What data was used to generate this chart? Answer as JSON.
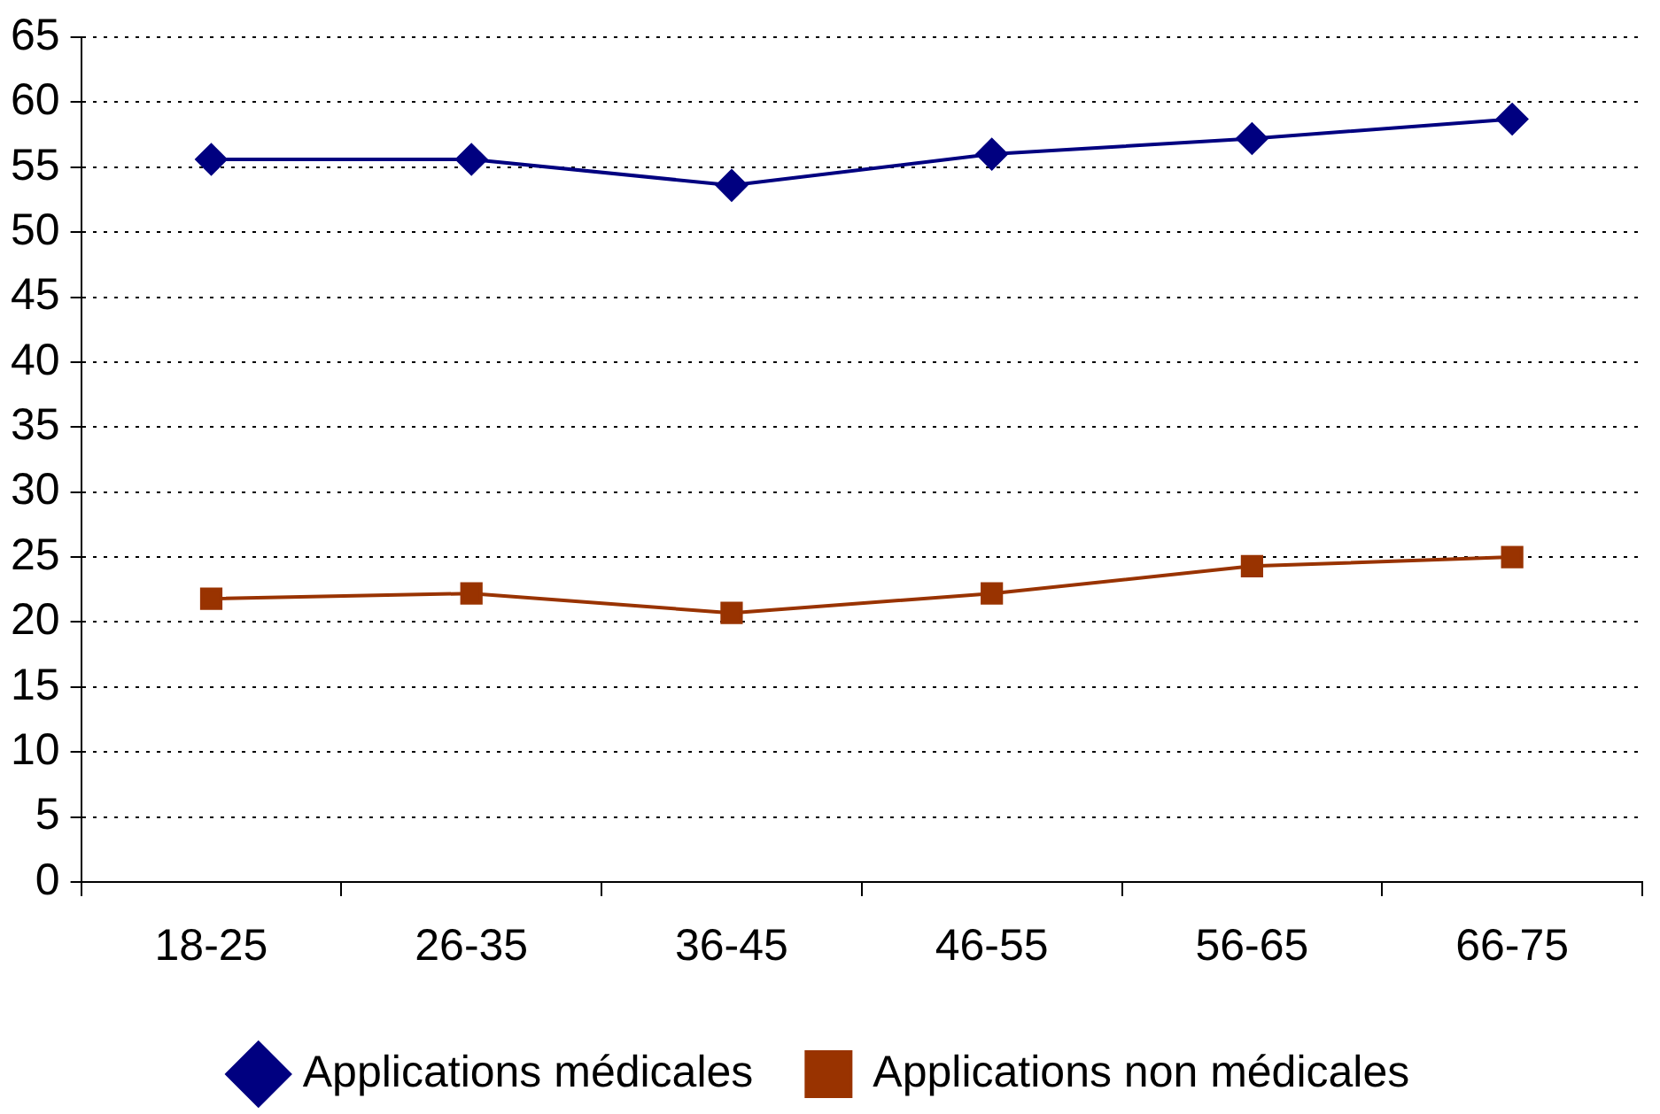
{
  "chart_data": {
    "type": "line",
    "categories": [
      "18-25",
      "26-35",
      "36-45",
      "46-55",
      "56-65",
      "66-75"
    ],
    "series": [
      {
        "name": "Applications médicales",
        "color": "#000080",
        "marker": "diamond",
        "values": [
          55.6,
          55.6,
          53.6,
          56.0,
          57.2,
          58.7
        ]
      },
      {
        "name": "Applications non médicales",
        "color": "#993300",
        "marker": "square",
        "values": [
          21.8,
          22.2,
          20.7,
          22.2,
          24.3,
          25.0
        ]
      }
    ],
    "ylim": [
      0,
      65
    ],
    "yticks": [
      0,
      5,
      10,
      15,
      20,
      25,
      30,
      35,
      40,
      45,
      50,
      55,
      60,
      65
    ],
    "grid": "y",
    "legend": "bottom",
    "line_style": "solid"
  }
}
